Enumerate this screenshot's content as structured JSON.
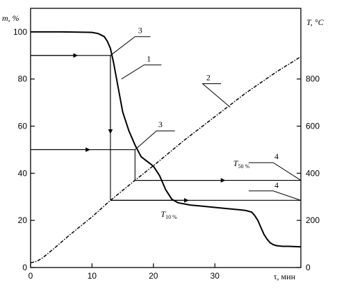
{
  "chart_data": {
    "type": "line",
    "y_left_label": "m, %",
    "y_right_label": "T, °C",
    "x_label": "τ, мин",
    "x_ticks": [
      0,
      10,
      20,
      30
    ],
    "y_left_ticks": [
      0,
      20,
      40,
      60,
      80,
      100
    ],
    "y_right_ticks": [
      0,
      200,
      400,
      600,
      800
    ],
    "xlim": [
      0,
      44
    ],
    "ylim_left": [
      0,
      110
    ],
    "ylim_right": [
      0,
      1100
    ],
    "grid": false,
    "series": [
      {
        "name": "1",
        "axis": "left",
        "style": "solid",
        "x": [
          0,
          5,
          10,
          11,
          12,
          12.5,
          13,
          13.5,
          14,
          14.5,
          15,
          16,
          17,
          18,
          19,
          20,
          21,
          22,
          23,
          24,
          26,
          28,
          30,
          32,
          34,
          35,
          36,
          36.5,
          37,
          37.5,
          38,
          38.5,
          39,
          39.5,
          40,
          41,
          42,
          44
        ],
        "y": [
          100,
          100,
          99.8,
          99.3,
          98,
          96,
          93,
          87,
          80,
          73,
          66,
          58,
          52,
          47,
          45,
          43,
          39,
          33,
          29,
          27.5,
          26.5,
          26,
          25.5,
          25,
          24.5,
          24.2,
          23.5,
          22,
          20,
          17,
          14,
          12,
          10.5,
          9.7,
          9.3,
          9,
          9,
          8.8
        ]
      },
      {
        "name": "2",
        "axis": "right",
        "style": "dashed",
        "x": [
          0,
          1,
          2,
          4,
          6,
          10,
          13,
          17,
          20,
          25,
          30,
          35,
          40,
          44
        ],
        "y": [
          20,
          26,
          42,
          85,
          130,
          215,
          285,
          370,
          432,
          540,
          640,
          740,
          830,
          895
        ]
      }
    ],
    "annotations": [
      {
        "text": "1",
        "target": "curve-1"
      },
      {
        "text": "2",
        "target": "curve-2"
      },
      {
        "text": "3",
        "target": "m-90-point"
      },
      {
        "text": "3",
        "target": "m-50-point"
      },
      {
        "text": "4",
        "target": "T-50-level"
      },
      {
        "text": "4",
        "target": "T-10-level"
      },
      {
        "text": "T",
        "sub": "50 %",
        "target": "T-50-level"
      },
      {
        "text": "T",
        "sub": "10 %",
        "target": "T-10-level"
      }
    ],
    "construction": {
      "m_points": [
        90,
        50
      ],
      "tau_points": [
        13,
        17
      ],
      "T_values": [
        285,
        370
      ]
    }
  }
}
